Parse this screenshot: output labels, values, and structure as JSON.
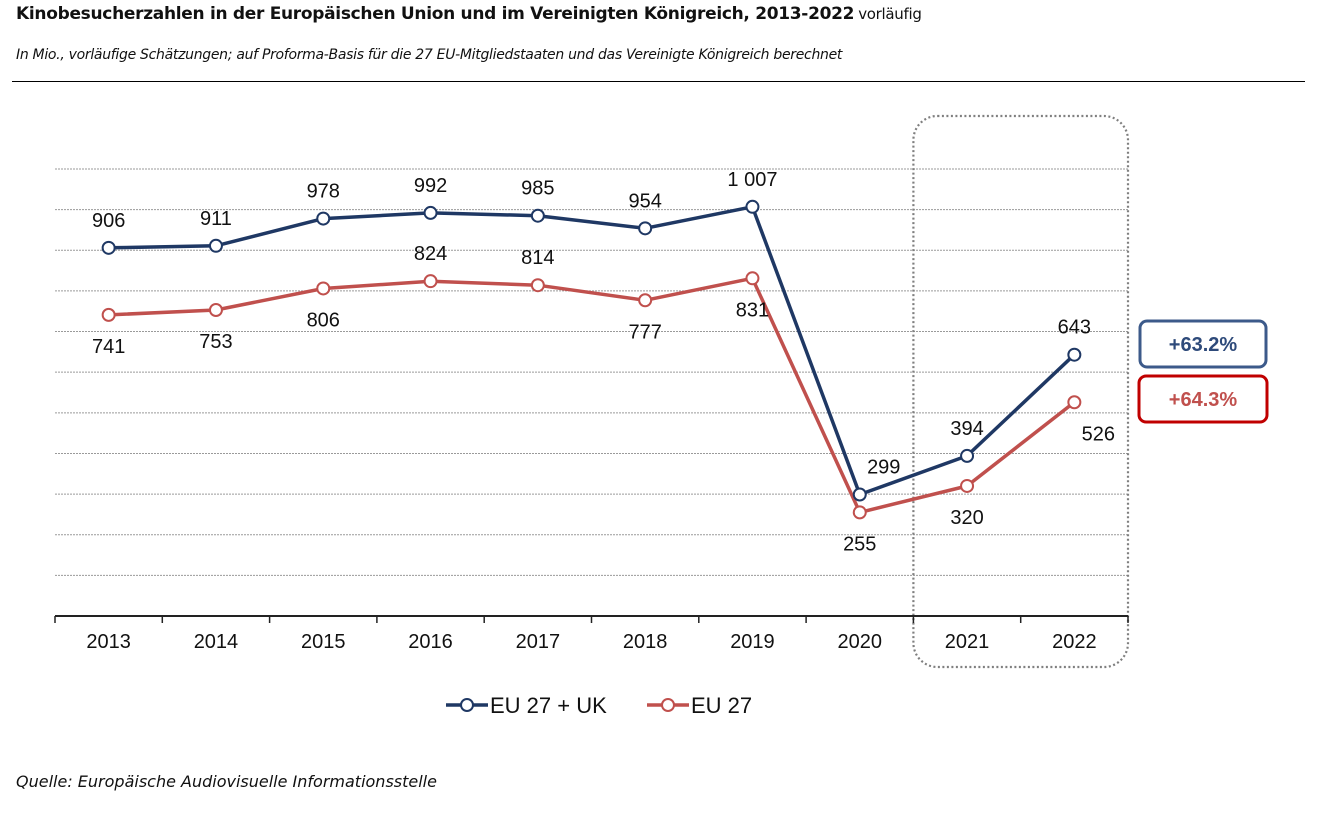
{
  "header": {
    "title": "Kinobesucherzahlen in der Europäischen Union und im Vereinigten Königreich, 2013-2022",
    "title_suffix": "vorläufig",
    "subtitle": "In Mio., vorläufige Schätzungen; auf Proforma-Basis für die 27 EU-Mitgliedstaaten und das Vereinigte Königreich berechnet"
  },
  "footer": {
    "source": "Quelle: Europäische Audiovisuelle Informationsstelle"
  },
  "chart_data": {
    "type": "line",
    "title": "Kinobesucherzahlen in der Europäischen Union und im Vereinigten Königreich, 2013-2022",
    "xlabel": "",
    "ylabel": "In Mio.",
    "categories": [
      "2013",
      "2014",
      "2015",
      "2016",
      "2017",
      "2018",
      "2019",
      "2020",
      "2021",
      "2022"
    ],
    "ylim": [
      0,
      1100
    ],
    "y_gridline_step": 100,
    "grid": true,
    "y_tick_labels_shown": false,
    "series": [
      {
        "name": "EU 27 + UK",
        "color": "#1f3864",
        "values": [
          906,
          911,
          978,
          992,
          985,
          954,
          1007,
          299,
          394,
          643
        ],
        "labels": [
          "906",
          "911",
          "978",
          "992",
          "985",
          "954",
          "1 007",
          "299",
          "394",
          "643"
        ],
        "label_position": [
          "above",
          "above",
          "above",
          "above",
          "above",
          "above",
          "above",
          "above-right",
          "above",
          "above"
        ]
      },
      {
        "name": "EU 27",
        "color": "#c0504d",
        "values": [
          741,
          753,
          806,
          824,
          814,
          777,
          831,
          255,
          320,
          526
        ],
        "labels": [
          "741",
          "753",
          "806",
          "824",
          "814",
          "777",
          "831",
          "255",
          "320",
          "526"
        ],
        "label_position": [
          "below",
          "below",
          "below",
          "above",
          "above",
          "below",
          "below",
          "below",
          "below",
          "below-right"
        ]
      }
    ],
    "highlight": {
      "categories": [
        "2021",
        "2022"
      ],
      "style": "dotted rounded box"
    },
    "annotations": [
      {
        "text": "+63.2%",
        "series": "EU 27 + UK",
        "color": "#2e4a7a",
        "border": "#3c5a8a"
      },
      {
        "text": "+64.3%",
        "series": "EU 27",
        "color": "#c0504d",
        "border": "#c00000"
      }
    ],
    "legend": {
      "position": "bottom",
      "entries": [
        "EU 27 + UK",
        "EU 27"
      ]
    }
  }
}
